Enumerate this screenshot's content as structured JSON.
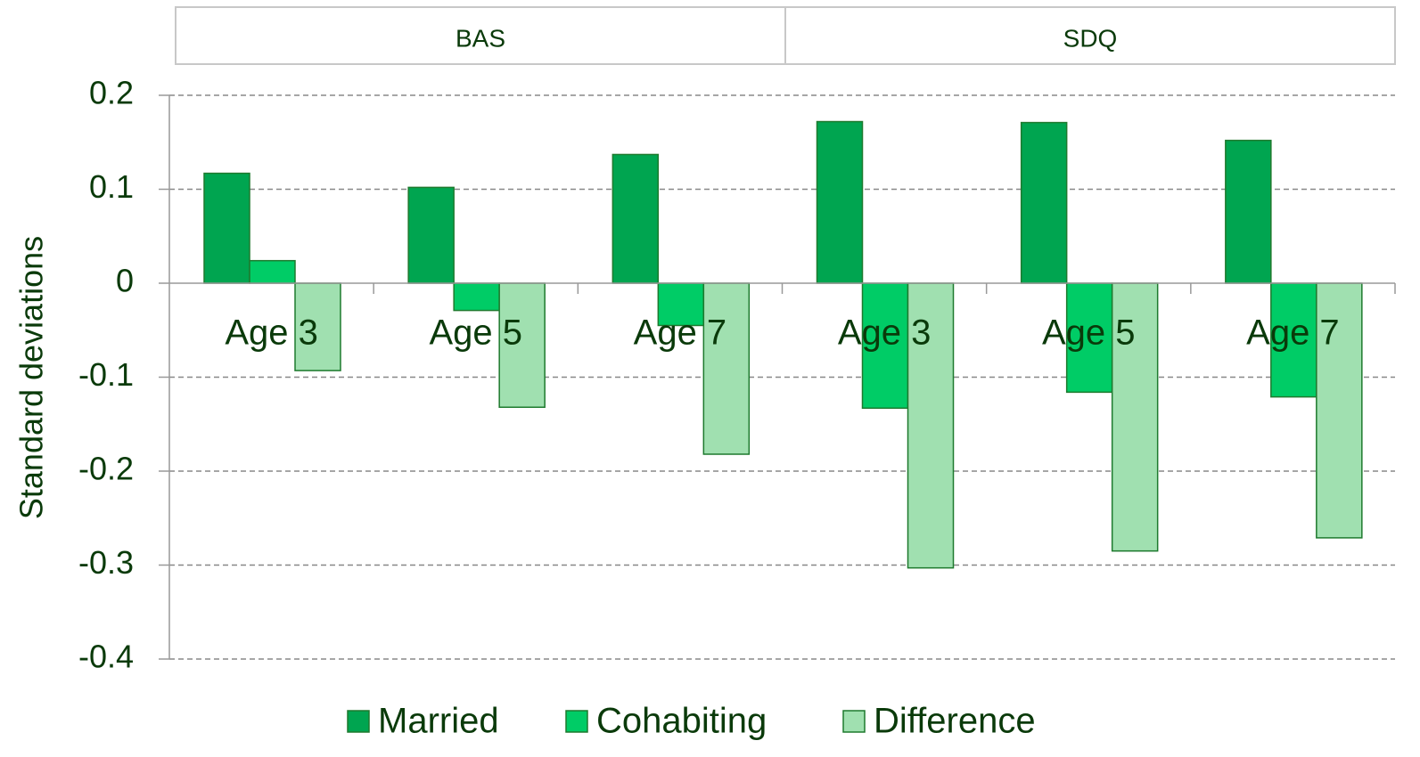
{
  "chart_data": {
    "type": "bar",
    "y_label": "Standard deviations",
    "groups": [
      "BAS",
      "SDQ"
    ],
    "categories": [
      "Age 3",
      "Age 5",
      "Age 7",
      "Age 3",
      "Age 5",
      "Age 7"
    ],
    "series": [
      {
        "name": "Married",
        "color": "#00a550",
        "values": [
          0.117,
          0.102,
          0.137,
          0.172,
          0.171,
          0.152
        ]
      },
      {
        "name": "Cohabiting",
        "color": "#00cc66",
        "values": [
          0.024,
          -0.029,
          -0.045,
          -0.133,
          -0.116,
          -0.121
        ]
      },
      {
        "name": "Difference",
        "color": "#a0e0b0",
        "values": [
          -0.093,
          -0.132,
          -0.182,
          -0.303,
          -0.285,
          -0.271
        ]
      }
    ],
    "ylim": [
      -0.4,
      0.2
    ],
    "yticks": [
      0.2,
      0.1,
      0,
      -0.1,
      -0.2,
      -0.3,
      -0.4
    ],
    "grid": true,
    "legend": "bottom"
  }
}
